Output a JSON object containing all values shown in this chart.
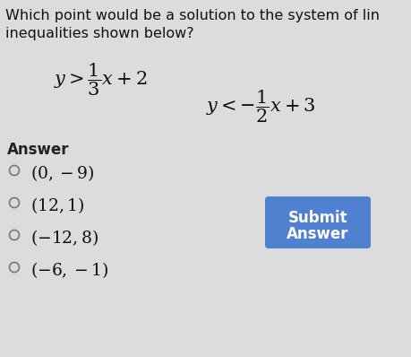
{
  "title_line1": "Which point would be a solution to the system of lin",
  "title_line2": "inequalities shown below?",
  "answer_label": "Answer",
  "choices": [
    "(0,–9)",
    "(12, 1)",
    "(−12, 8)",
    "(−6, −1)"
  ],
  "choices_display": [
    "(0, -9)",
    "(12, 1)",
    "(-12, 8)",
    "(-6, -1)"
  ],
  "submit_text_line1": "Submit",
  "submit_text_line2": "Answer",
  "bg_color": "#dcdcdc",
  "submit_bg": "#5080d0",
  "submit_text_color": "#ffffff",
  "text_color": "#111111",
  "answer_label_color": "#222222",
  "radio_color": "#777777",
  "title_fontsize": 11.5,
  "eq_fontsize": 15,
  "answer_fontsize": 12,
  "choice_fontsize": 13.5,
  "submit_fontsize": 12
}
